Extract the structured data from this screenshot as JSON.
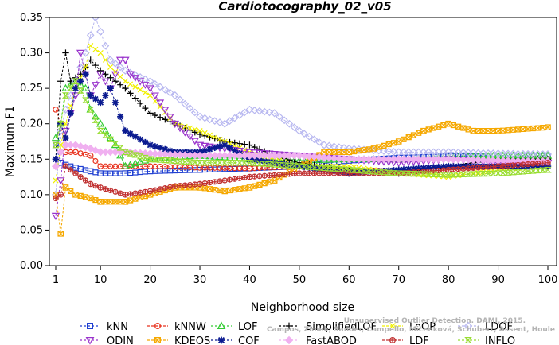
{
  "chart_data": {
    "type": "line",
    "title": "Cardiotocography_02_v05",
    "xlabel": "Neighborhood size",
    "ylabel": "Maximum F1",
    "xlim": [
      1,
      100
    ],
    "ylim": [
      0,
      0.35
    ],
    "xticks": [
      "1",
      "10",
      "20",
      "30",
      "40",
      "50",
      "60",
      "70",
      "80",
      "90",
      "100"
    ],
    "yticks": [
      "0.00",
      "0.05",
      "0.10",
      "0.15",
      "0.20",
      "0.25",
      "0.30",
      "0.35"
    ],
    "grid": false,
    "legend_position": "bottom",
    "watermark": [
      "Campos, Zimek, Sander, Campello, Micenková, Schubert, Assent, Houle",
      "Unsupervised Outlier Detection. DAMI, 2015."
    ],
    "series": [
      {
        "name": "kNN",
        "color": "#1f3fd1",
        "marker": "square",
        "x": [
          1,
          2,
          3,
          5,
          8,
          10,
          15,
          20,
          30,
          40,
          50,
          60,
          70,
          80,
          90,
          100
        ],
        "y": [
          0.17,
          0.145,
          0.142,
          0.138,
          0.133,
          0.13,
          0.13,
          0.133,
          0.135,
          0.137,
          0.14,
          0.148,
          0.152,
          0.154,
          0.155,
          0.155
        ]
      },
      {
        "name": "kNNW",
        "color": "#e8321e",
        "marker": "circle",
        "x": [
          1,
          2,
          3,
          5,
          8,
          10,
          15,
          20,
          30,
          40,
          50,
          60,
          70,
          80,
          90,
          100
        ],
        "y": [
          0.22,
          0.2,
          0.16,
          0.16,
          0.155,
          0.14,
          0.14,
          0.14,
          0.138,
          0.137,
          0.14,
          0.135,
          0.133,
          0.138,
          0.14,
          0.15
        ]
      },
      {
        "name": "LOF",
        "color": "#33cc33",
        "marker": "triangle",
        "x": [
          1,
          2,
          3,
          5,
          7,
          8,
          10,
          13,
          15,
          20,
          25,
          30,
          40,
          50,
          60,
          70,
          80,
          90,
          100
        ],
        "y": [
          0.18,
          0.2,
          0.25,
          0.26,
          0.25,
          0.22,
          0.2,
          0.17,
          0.14,
          0.15,
          0.153,
          0.155,
          0.15,
          0.148,
          0.15,
          0.15,
          0.152,
          0.155,
          0.155
        ]
      },
      {
        "name": "SimplifiedLOF",
        "color": "#000000",
        "marker": "plus",
        "x": [
          1,
          2,
          3,
          4,
          6,
          8,
          10,
          12,
          15,
          20,
          25,
          30,
          35,
          40,
          45,
          50,
          60,
          70,
          80,
          90,
          100
        ],
        "y": [
          0.15,
          0.26,
          0.3,
          0.26,
          0.27,
          0.29,
          0.275,
          0.265,
          0.25,
          0.215,
          0.2,
          0.185,
          0.175,
          0.17,
          0.155,
          0.145,
          0.135,
          0.13,
          0.14,
          0.15,
          0.15
        ]
      },
      {
        "name": "LoOP",
        "color": "#f0f000",
        "marker": "x",
        "x": [
          1,
          2,
          3,
          5,
          7,
          8,
          10,
          12,
          15,
          20,
          25,
          30,
          40,
          50,
          60,
          70,
          80,
          90,
          100
        ],
        "y": [
          0.12,
          0.17,
          0.2,
          0.25,
          0.28,
          0.31,
          0.3,
          0.28,
          0.26,
          0.24,
          0.2,
          0.19,
          0.16,
          0.14,
          0.14,
          0.13,
          0.125,
          0.135,
          0.14
        ]
      },
      {
        "name": "LDOF",
        "color": "#b8b8f0",
        "marker": "diamond",
        "x": [
          1,
          2,
          3,
          5,
          7,
          9,
          10,
          12,
          15,
          20,
          25,
          30,
          35,
          40,
          45,
          50,
          55,
          60,
          70,
          80,
          90,
          100
        ],
        "y": [
          0.1,
          0.19,
          0.22,
          0.26,
          0.3,
          0.35,
          0.33,
          0.29,
          0.275,
          0.26,
          0.24,
          0.21,
          0.2,
          0.22,
          0.215,
          0.19,
          0.17,
          0.165,
          0.16,
          0.16,
          0.158,
          0.157
        ]
      },
      {
        "name": "ODIN",
        "color": "#9933cc",
        "marker": "triangle-down",
        "x": [
          1,
          2,
          3,
          5,
          6,
          8,
          10,
          12,
          14,
          15,
          16,
          18,
          20,
          25,
          30,
          40,
          50,
          60,
          70,
          80,
          90,
          100
        ],
        "y": [
          0.07,
          0.12,
          0.19,
          0.24,
          0.3,
          0.24,
          0.27,
          0.25,
          0.29,
          0.29,
          0.27,
          0.26,
          0.25,
          0.2,
          0.17,
          0.16,
          0.155,
          0.15,
          0.145,
          0.15,
          0.145,
          0.145
        ]
      },
      {
        "name": "KDEOS",
        "color": "#f5a800",
        "marker": "square-x",
        "x": [
          1,
          2,
          3,
          5,
          8,
          10,
          15,
          20,
          25,
          30,
          35,
          40,
          45,
          50,
          55,
          60,
          65,
          70,
          75,
          80,
          85,
          90,
          100
        ],
        "y": [
          0.1,
          0.045,
          0.11,
          0.1,
          0.095,
          0.09,
          0.09,
          0.1,
          0.11,
          0.11,
          0.105,
          0.11,
          0.12,
          0.14,
          0.16,
          0.16,
          0.165,
          0.175,
          0.19,
          0.2,
          0.19,
          0.19,
          0.195
        ]
      },
      {
        "name": "COF",
        "color": "#0a1a90",
        "marker": "star",
        "x": [
          1,
          2,
          3,
          5,
          7,
          8,
          10,
          12,
          15,
          20,
          25,
          30,
          35,
          40,
          50,
          60,
          70,
          80,
          90,
          100
        ],
        "y": [
          0.15,
          0.2,
          0.18,
          0.25,
          0.27,
          0.24,
          0.23,
          0.25,
          0.19,
          0.17,
          0.16,
          0.16,
          0.17,
          0.15,
          0.14,
          0.13,
          0.135,
          0.14,
          0.14,
          0.14
        ]
      },
      {
        "name": "FastABOD",
        "color": "#f0b0f0",
        "marker": "diamond-filled",
        "x": [
          1,
          2,
          3,
          5,
          8,
          10,
          15,
          20,
          30,
          40,
          50,
          60,
          70,
          80,
          90,
          100
        ],
        "y": [
          0.14,
          0.16,
          0.17,
          0.17,
          0.165,
          0.16,
          0.16,
          0.158,
          0.155,
          0.155,
          0.155,
          0.15,
          0.15,
          0.15,
          0.148,
          0.147
        ]
      },
      {
        "name": "LDF",
        "color": "#c03030",
        "marker": "circle-plus",
        "x": [
          1,
          2,
          3,
          5,
          8,
          10,
          15,
          20,
          25,
          30,
          40,
          50,
          60,
          70,
          80,
          90,
          100
        ],
        "y": [
          0.095,
          0.1,
          0.14,
          0.13,
          0.115,
          0.11,
          0.1,
          0.105,
          0.112,
          0.115,
          0.125,
          0.13,
          0.13,
          0.13,
          0.135,
          0.14,
          0.145
        ]
      },
      {
        "name": "INFLO",
        "color": "#99dd33",
        "marker": "hourglass",
        "x": [
          1,
          2,
          3,
          5,
          8,
          10,
          15,
          20,
          30,
          40,
          50,
          60,
          70,
          80,
          90,
          100
        ],
        "y": [
          0.17,
          0.2,
          0.24,
          0.26,
          0.22,
          0.19,
          0.16,
          0.15,
          0.145,
          0.145,
          0.14,
          0.135,
          0.13,
          0.128,
          0.13,
          0.135
        ]
      }
    ]
  }
}
